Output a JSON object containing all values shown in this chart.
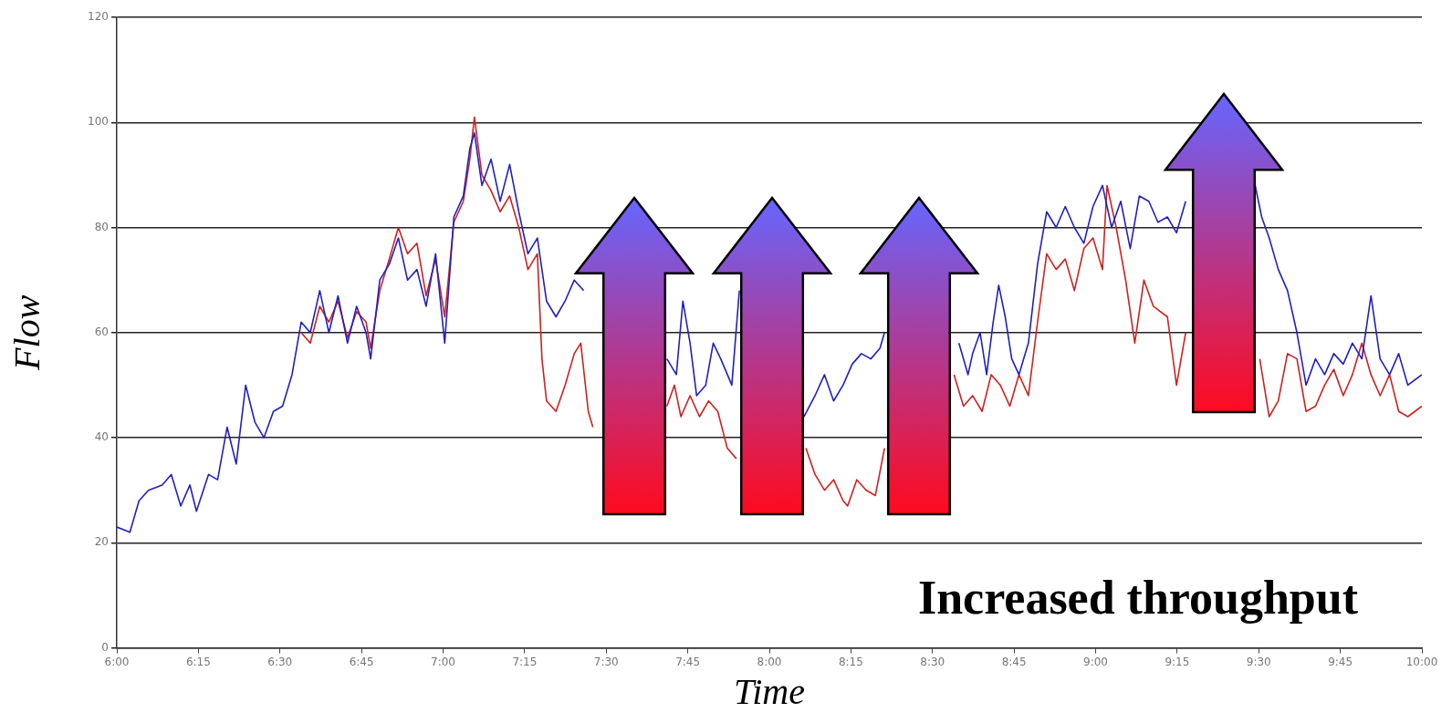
{
  "chart_data": {
    "type": "line",
    "xlabel": "Time",
    "ylabel": "Flow",
    "xlim": [
      6,
      10
    ],
    "ylim": [
      0,
      120
    ],
    "xticks": [
      {
        "value": 6,
        "label": "6:00"
      },
      {
        "value": 6.25,
        "label": "6:15"
      },
      {
        "value": 6.5,
        "label": "6:30"
      },
      {
        "value": 6.75,
        "label": "6:45"
      },
      {
        "value": 7,
        "label": "7:00"
      },
      {
        "value": 7.25,
        "label": "7:15"
      },
      {
        "value": 7.5,
        "label": "7:30"
      },
      {
        "value": 7.75,
        "label": "7:45"
      },
      {
        "value": 8,
        "label": "8:00"
      },
      {
        "value": 8.25,
        "label": "8:15"
      },
      {
        "value": 8.5,
        "label": "8:30"
      },
      {
        "value": 8.75,
        "label": "8:45"
      },
      {
        "value": 9,
        "label": "9:00"
      },
      {
        "value": 9.25,
        "label": "9:15"
      },
      {
        "value": 9.5,
        "label": "9:30"
      },
      {
        "value": 9.75,
        "label": "9:45"
      },
      {
        "value": 10,
        "label": "10:00"
      }
    ],
    "yticks": [
      0,
      20,
      40,
      60,
      80,
      100,
      120
    ],
    "grid": "y",
    "legend": false,
    "marker": "none",
    "line_style": "solid",
    "annotations": [
      "Increased throughput"
    ],
    "series": [
      {
        "color": "#2020c0",
        "x": [
          6.0,
          6.04,
          6.068,
          6.097,
          6.139,
          6.167,
          6.196,
          6.224,
          6.244,
          6.281,
          6.309,
          6.338,
          6.366,
          6.395,
          6.423,
          6.451,
          6.48,
          6.508,
          6.537,
          6.565,
          6.593,
          6.622,
          6.65,
          6.678,
          6.707,
          6.735,
          6.764,
          6.778,
          6.806,
          6.835,
          6.863,
          6.891,
          6.92,
          6.948,
          6.977,
          7.005,
          7.033,
          7.062,
          7.082,
          7.096,
          7.119,
          7.147,
          7.175,
          7.204,
          7.232,
          7.26,
          7.289,
          7.317,
          7.346,
          7.374,
          7.402,
          7.431,
          7.559,
          7.664,
          7.686,
          7.715,
          7.735,
          7.757,
          7.777,
          7.805,
          7.828,
          7.851,
          7.885,
          7.908,
          8.007,
          8.106,
          8.14,
          8.169,
          8.197,
          8.226,
          8.254,
          8.282,
          8.311,
          8.339,
          8.353,
          8.453,
          8.552,
          8.581,
          8.609,
          8.623,
          8.646,
          8.666,
          8.686,
          8.703,
          8.723,
          8.743,
          8.765,
          8.794,
          8.822,
          8.85,
          8.879,
          8.907,
          8.935,
          8.964,
          8.992,
          9.021,
          9.049,
          9.077,
          9.106,
          9.134,
          9.163,
          9.191,
          9.22,
          9.248,
          9.276,
          9.39,
          9.489,
          9.509,
          9.532,
          9.56,
          9.588,
          9.617,
          9.645,
          9.674,
          9.702,
          9.73,
          9.759,
          9.787,
          9.816,
          9.844,
          9.872,
          9.901,
          9.929,
          9.957,
          10.0
        ],
        "values": [
          23,
          22,
          28,
          30,
          31,
          33,
          27,
          31,
          26,
          33,
          32,
          42,
          35,
          50,
          43,
          40,
          45,
          46,
          52,
          62,
          60,
          68,
          60,
          67,
          58,
          65,
          60,
          55,
          70,
          73,
          78,
          70,
          72,
          65,
          75,
          58,
          82,
          86,
          95,
          98,
          88,
          93,
          85,
          92,
          83,
          75,
          78,
          66,
          63,
          66,
          70,
          68,
          null,
          null,
          55,
          52,
          66,
          58,
          48,
          50,
          58,
          55,
          50,
          68,
          null,
          44,
          48,
          52,
          47,
          50,
          54,
          56,
          55,
          57,
          60,
          null,
          null,
          58,
          52,
          56,
          60,
          52,
          62,
          69,
          63,
          55,
          52,
          58,
          73,
          83,
          80,
          84,
          80,
          77,
          84,
          88,
          80,
          85,
          76,
          86,
          85,
          81,
          82,
          79,
          85,
          null,
          88,
          82,
          78,
          72,
          68,
          60,
          50,
          55,
          52,
          56,
          54,
          58,
          55,
          67,
          55,
          52,
          56,
          50,
          52
        ]
      },
      {
        "color": "#d02020",
        "x": [
          6.565,
          6.593,
          6.622,
          6.65,
          6.678,
          6.707,
          6.735,
          6.764,
          6.778,
          6.806,
          6.835,
          6.863,
          6.891,
          6.92,
          6.948,
          6.977,
          7.005,
          7.033,
          7.062,
          7.082,
          7.096,
          7.119,
          7.147,
          7.175,
          7.204,
          7.232,
          7.26,
          7.289,
          7.303,
          7.317,
          7.346,
          7.374,
          7.402,
          7.422,
          7.445,
          7.459,
          7.559,
          7.686,
          7.709,
          7.729,
          7.757,
          7.786,
          7.814,
          7.842,
          7.871,
          7.899,
          8.007,
          8.112,
          8.14,
          8.169,
          8.197,
          8.226,
          8.24,
          8.268,
          8.297,
          8.325,
          8.353,
          8.453,
          8.566,
          8.595,
          8.623,
          8.652,
          8.68,
          8.708,
          8.737,
          8.765,
          8.794,
          8.822,
          8.85,
          8.879,
          8.907,
          8.935,
          8.964,
          8.992,
          9.021,
          9.035,
          9.063,
          9.092,
          9.12,
          9.148,
          9.177,
          9.22,
          9.248,
          9.276,
          9.39,
          9.503,
          9.532,
          9.56,
          9.588,
          9.617,
          9.645,
          9.674,
          9.702,
          9.73,
          9.759,
          9.787,
          9.816,
          9.844,
          9.872,
          9.901,
          9.929,
          9.957,
          10.0
        ],
        "values": [
          60,
          58,
          65,
          62,
          66,
          59,
          64,
          62,
          57,
          68,
          74,
          80,
          75,
          77,
          67,
          74,
          63,
          81,
          85,
          93,
          101,
          90,
          87,
          83,
          86,
          80,
          72,
          75,
          55,
          47,
          45,
          50,
          56,
          58,
          45,
          42,
          null,
          46,
          50,
          44,
          48,
          44,
          47,
          45,
          38,
          36,
          null,
          38,
          33,
          30,
          32,
          28,
          27,
          32,
          30,
          29,
          38,
          null,
          52,
          46,
          48,
          45,
          52,
          50,
          46,
          52,
          48,
          62,
          75,
          72,
          74,
          68,
          76,
          78,
          72,
          88,
          80,
          70,
          58,
          70,
          65,
          63,
          50,
          60,
          null,
          55,
          44,
          47,
          56,
          55,
          45,
          46,
          50,
          53,
          48,
          52,
          58,
          52,
          48,
          52,
          45,
          44,
          46
        ]
      }
    ]
  }
}
